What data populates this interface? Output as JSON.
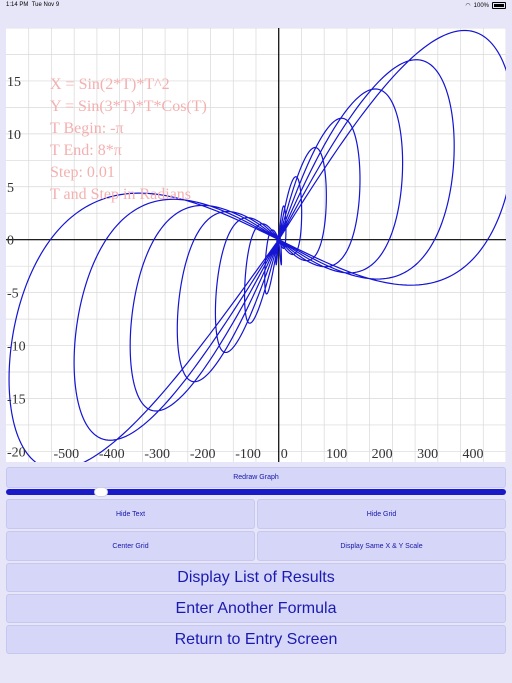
{
  "status": {
    "time": "1:14 PM",
    "date": "Tue Nov 9",
    "battery": "100%"
  },
  "overlay": {
    "lines": [
      "X = Sin(2*T)*T^2",
      "Y = Sin(3*T)*T*Cos(T)",
      "T Begin: -π",
      "T End: 8*π",
      "Step: 0.01",
      "T and Step in Radians"
    ]
  },
  "buttons": {
    "redraw": "Redraw Graph",
    "hide_text": "Hide Text",
    "hide_grid": "Hide Grid",
    "center_grid": "Center Grid",
    "same_scale": "Display Same X & Y Scale",
    "list_results": "Display List of Results",
    "another_formula": "Enter Another Formula",
    "return_entry": "Return to Entry Screen"
  },
  "slider": {
    "value": 0.19
  },
  "chart_data": {
    "type": "line",
    "x_formula": "Sin(2*T)*T^2",
    "y_formula": "Sin(3*T)*T*Cos(T)",
    "t_begin": -3.14159,
    "t_end": 25.1327,
    "step": 0.01,
    "xlim": [
      -600,
      500
    ],
    "ylim": [
      -21,
      20
    ],
    "x_ticks": [
      -500,
      -400,
      -300,
      -200,
      -100,
      0,
      100,
      200,
      300,
      400
    ],
    "y_ticks": [
      15,
      10,
      5,
      0,
      -5,
      -10,
      -15,
      -20
    ],
    "grid": true,
    "line_color": "#1414d2",
    "text_color": "#f4b0b0"
  }
}
